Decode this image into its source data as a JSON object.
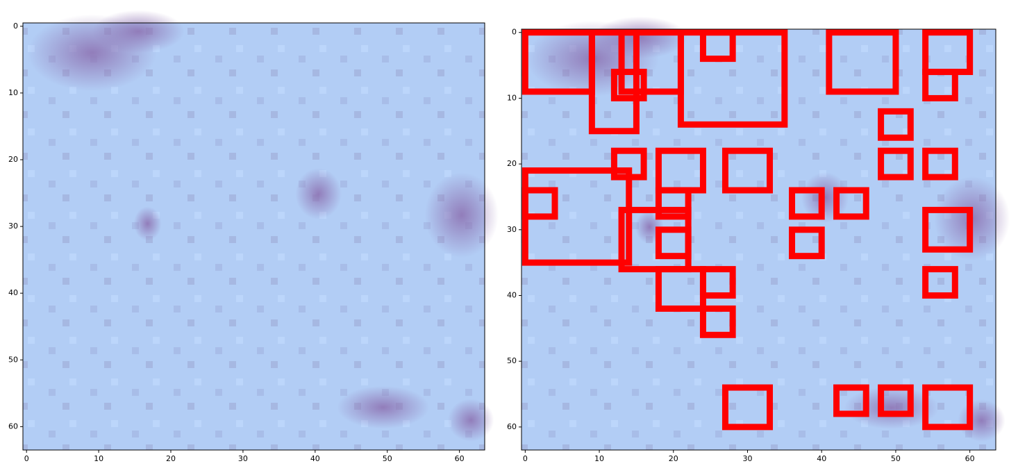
{
  "chart_data": [
    {
      "type": "image",
      "xlim": [
        -0.5,
        63.5
      ],
      "ylim": [
        63.5,
        -0.5
      ],
      "xticks": [
        0,
        10,
        20,
        30,
        40,
        50,
        60
      ],
      "yticks": [
        0,
        10,
        20,
        30,
        40,
        50,
        60
      ]
    },
    {
      "type": "image",
      "xlim": [
        -0.5,
        63.5
      ],
      "ylim": [
        63.5,
        -0.5
      ],
      "xticks": [
        0,
        10,
        20,
        30,
        40,
        50,
        60
      ],
      "yticks": [
        0,
        10,
        20,
        30,
        40,
        50,
        60
      ],
      "box_color": "#ff0000",
      "boxes": [
        [
          0,
          0,
          9,
          9
        ],
        [
          9,
          0,
          15,
          15
        ],
        [
          13,
          0,
          21,
          9
        ],
        [
          12,
          6,
          16,
          10
        ],
        [
          21,
          0,
          35,
          14
        ],
        [
          24,
          0,
          28,
          4
        ],
        [
          41,
          0,
          50,
          9
        ],
        [
          54,
          0,
          60,
          6
        ],
        [
          54,
          6,
          58,
          10
        ],
        [
          48,
          12,
          52,
          16
        ],
        [
          12,
          18,
          16,
          22
        ],
        [
          18,
          18,
          24,
          24
        ],
        [
          27,
          18,
          33,
          24
        ],
        [
          48,
          18,
          52,
          22
        ],
        [
          54,
          18,
          58,
          22
        ],
        [
          0,
          21,
          14,
          35
        ],
        [
          0,
          24,
          4,
          28
        ],
        [
          18,
          24,
          22,
          28
        ],
        [
          36,
          24,
          40,
          28
        ],
        [
          42,
          24,
          46,
          28
        ],
        [
          13,
          27,
          22,
          36
        ],
        [
          18,
          30,
          22,
          34
        ],
        [
          36,
          30,
          40,
          34
        ],
        [
          54,
          27,
          60,
          33
        ],
        [
          18,
          36,
          24,
          42
        ],
        [
          24,
          36,
          28,
          40
        ],
        [
          24,
          42,
          28,
          46
        ],
        [
          54,
          36,
          58,
          40
        ],
        [
          27,
          54,
          33,
          60
        ],
        [
          42,
          54,
          46,
          58
        ],
        [
          48,
          54,
          52,
          58
        ],
        [
          54,
          54,
          60,
          60
        ]
      ]
    }
  ]
}
